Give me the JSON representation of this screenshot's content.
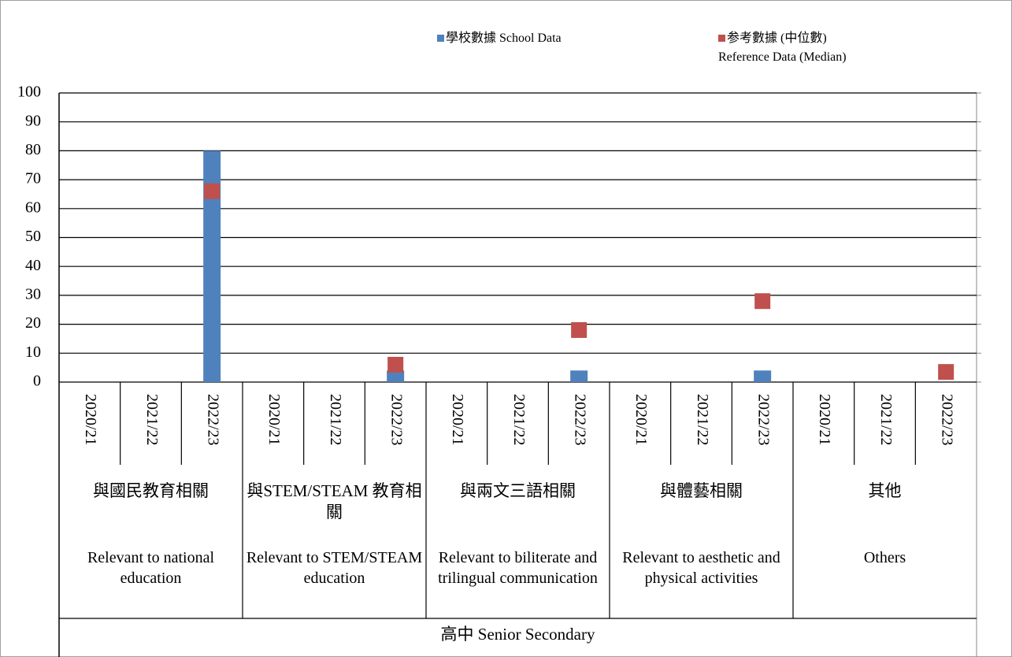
{
  "chart_data": {
    "type": "bar",
    "categories": [
      "2020/21",
      "2021/22",
      "2022/23",
      "2020/21",
      "2021/22",
      "2022/23",
      "2020/21",
      "2021/22",
      "2022/23",
      "2020/21",
      "2021/22",
      "2022/23",
      "2020/21",
      "2021/22",
      "2022/23"
    ],
    "groups": [
      {
        "label_zh": "與國民教育相關",
        "label_en": "Relevant to national education"
      },
      {
        "label_zh": "與STEM/STEAM 教育相關",
        "label_en": "Relevant to STEM/STEAM education"
      },
      {
        "label_zh": "與兩文三語相關",
        "label_en": "Relevant to biliterate and trilingual communication"
      },
      {
        "label_zh": "與體藝相關",
        "label_en": "Relevant to aesthetic and physical activities"
      },
      {
        "label_zh": "其他",
        "label_en": "Others"
      }
    ],
    "group_title": "高中 Senior Secondary",
    "series": [
      {
        "name": "學校數據 School Data",
        "color": "#4f81bd",
        "type": "bar",
        "values": [
          null,
          null,
          80,
          null,
          null,
          4,
          null,
          null,
          4,
          null,
          null,
          4,
          null,
          null,
          null
        ]
      },
      {
        "name": "参考數據 (中位數)\nReference Data (Median)",
        "color": "#c0504d",
        "type": "marker",
        "values": [
          null,
          null,
          66,
          null,
          null,
          6,
          null,
          null,
          18,
          null,
          null,
          28,
          null,
          null,
          3.5
        ]
      }
    ],
    "ylim": [
      0,
      100
    ],
    "yticks": [
      0,
      10,
      20,
      30,
      40,
      50,
      60,
      70,
      80,
      90,
      100
    ],
    "grid": true
  }
}
